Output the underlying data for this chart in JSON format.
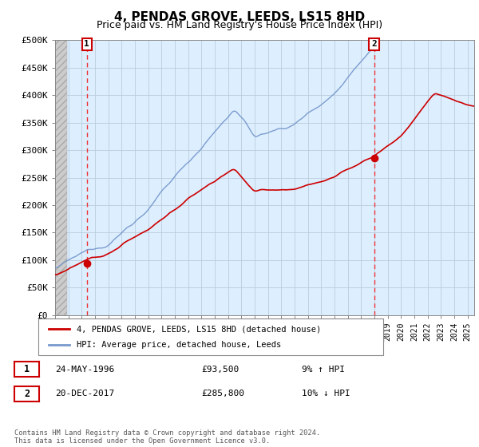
{
  "title": "4, PENDAS GROVE, LEEDS, LS15 8HD",
  "subtitle": "Price paid vs. HM Land Registry's House Price Index (HPI)",
  "ylim": [
    0,
    500000
  ],
  "yticks": [
    0,
    50000,
    100000,
    150000,
    200000,
    250000,
    300000,
    350000,
    400000,
    450000,
    500000
  ],
  "ytick_labels": [
    "£0",
    "£50K",
    "£100K",
    "£150K",
    "£200K",
    "£250K",
    "£300K",
    "£350K",
    "£400K",
    "£450K",
    "£500K"
  ],
  "xlim_start": 1994.0,
  "xlim_end": 2025.5,
  "sale1_date": 1996.39,
  "sale1_price": 93500,
  "sale1_label": "1",
  "sale2_date": 2017.97,
  "sale2_price": 285800,
  "sale2_label": "2",
  "red_line_color": "#cc0000",
  "blue_line_color": "#7799cc",
  "dot_color": "#cc0000",
  "dashed_line_color": "#ee3333",
  "annotation_box_color": "#cc0000",
  "legend_label_red": "4, PENDAS GROVE, LEEDS, LS15 8HD (detached house)",
  "legend_label_blue": "HPI: Average price, detached house, Leeds",
  "footer_text": "Contains HM Land Registry data © Crown copyright and database right 2024.\nThis data is licensed under the Open Government Licence v3.0.",
  "table_row1": [
    "1",
    "24-MAY-1996",
    "£93,500",
    "9% ↑ HPI"
  ],
  "table_row2": [
    "2",
    "20-DEC-2017",
    "£285,800",
    "10% ↓ HPI"
  ],
  "plot_bg_color": "#ddeeff",
  "grid_color": "#bbccdd",
  "title_fontsize": 11,
  "subtitle_fontsize": 9
}
